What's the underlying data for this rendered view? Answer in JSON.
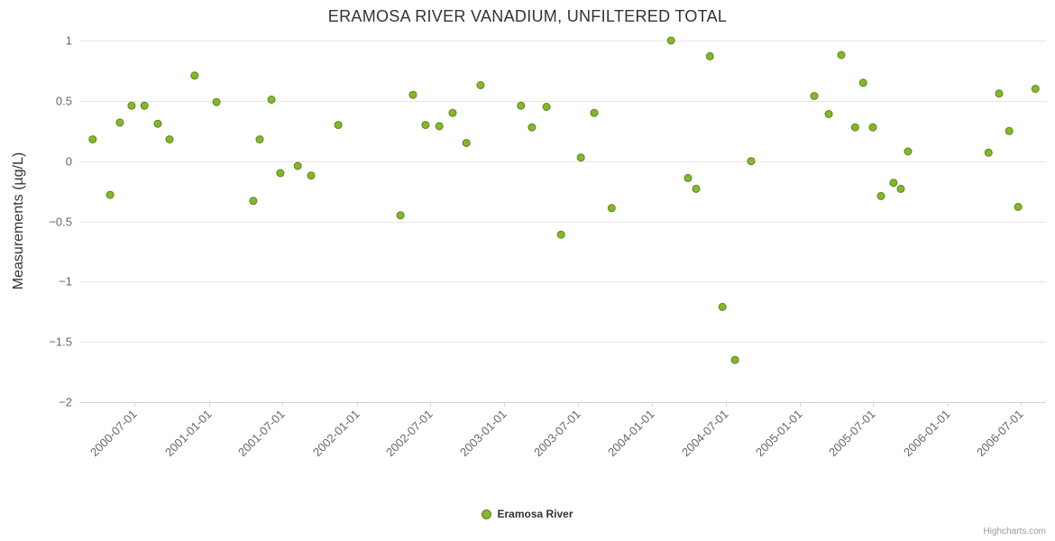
{
  "title": "ERAMOSA RIVER VANADIUM, UNFILTERED TOTAL",
  "y_axis": {
    "label": "Measurements (µg/L)",
    "ticks": [
      1,
      0.5,
      0,
      -0.5,
      -1,
      -1.5,
      -2
    ]
  },
  "legend": {
    "label": "Eramosa River"
  },
  "credits": "Highcharts.com",
  "colors": {
    "marker_fill": "#86b62a",
    "marker_stroke": "#5d861c",
    "grid": "#e6e6e6",
    "axis_line": "#ccd6eb",
    "title_text": "#333333",
    "label_text": "#666666"
  },
  "chart_data": {
    "type": "scatter",
    "title": "ERAMOSA RIVER VANADIUM, UNFILTERED TOTAL",
    "ylabel": "Measurements (µg/L)",
    "ylim": [
      -2,
      1
    ],
    "xlim": [
      "2000-02-15",
      "2006-09-01"
    ],
    "x_ticks": [
      "2000-07-01",
      "2001-01-01",
      "2001-07-01",
      "2002-01-01",
      "2002-07-01",
      "2003-01-01",
      "2003-07-01",
      "2004-01-01",
      "2004-07-01",
      "2005-01-01",
      "2005-07-01",
      "2006-01-01",
      "2006-07-01"
    ],
    "series": [
      {
        "name": "Eramosa River",
        "points": [
          [
            "2000-03-19",
            0.18
          ],
          [
            "2000-05-01",
            -0.28
          ],
          [
            "2000-05-25",
            0.32
          ],
          [
            "2000-06-23",
            0.46
          ],
          [
            "2000-07-25",
            0.46
          ],
          [
            "2000-08-27",
            0.31
          ],
          [
            "2000-09-25",
            0.18
          ],
          [
            "2000-11-26",
            0.71
          ],
          [
            "2001-01-19",
            0.49
          ],
          [
            "2001-04-20",
            -0.33
          ],
          [
            "2001-05-06",
            0.18
          ],
          [
            "2001-06-04",
            0.51
          ],
          [
            "2001-06-26",
            -0.1
          ],
          [
            "2001-08-08",
            -0.04
          ],
          [
            "2001-09-10",
            -0.12
          ],
          [
            "2001-11-16",
            0.3
          ],
          [
            "2002-04-19",
            -0.45
          ],
          [
            "2002-05-20",
            0.55
          ],
          [
            "2002-06-20",
            0.3
          ],
          [
            "2002-07-24",
            0.29
          ],
          [
            "2002-08-26",
            0.4
          ],
          [
            "2002-09-29",
            0.15
          ],
          [
            "2002-11-03",
            0.63
          ],
          [
            "2003-02-11",
            0.46
          ],
          [
            "2003-03-10",
            0.28
          ],
          [
            "2003-04-15",
            0.45
          ],
          [
            "2003-05-21",
            -0.61
          ],
          [
            "2003-07-09",
            0.03
          ],
          [
            "2003-08-11",
            0.4
          ],
          [
            "2003-09-23",
            -0.39
          ],
          [
            "2004-02-17",
            1.0
          ],
          [
            "2004-03-30",
            -0.14
          ],
          [
            "2004-04-19",
            -0.23
          ],
          [
            "2004-05-23",
            0.87
          ],
          [
            "2004-06-23",
            -1.21
          ],
          [
            "2004-07-24",
            -1.65
          ],
          [
            "2004-09-02",
            0.0
          ],
          [
            "2005-02-05",
            0.54
          ],
          [
            "2005-03-13",
            0.39
          ],
          [
            "2005-04-13",
            0.88
          ],
          [
            "2005-05-17",
            0.28
          ],
          [
            "2005-06-06",
            0.65
          ],
          [
            "2005-06-30",
            0.28
          ],
          [
            "2005-07-20",
            -0.29
          ],
          [
            "2005-08-20",
            -0.18
          ],
          [
            "2005-09-07",
            -0.23
          ],
          [
            "2005-09-25",
            0.08
          ],
          [
            "2006-04-12",
            0.07
          ],
          [
            "2006-05-08",
            0.56
          ],
          [
            "2006-06-02",
            0.25
          ],
          [
            "2006-06-24",
            -0.38
          ],
          [
            "2006-08-06",
            0.6
          ]
        ]
      }
    ]
  }
}
